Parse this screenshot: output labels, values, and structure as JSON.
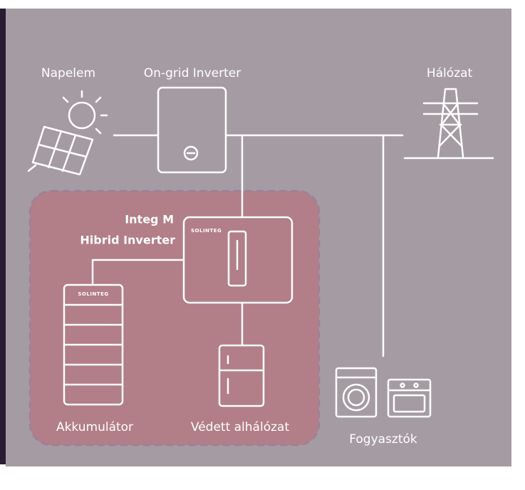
{
  "labels": {
    "solar": "Napelem",
    "ongrid": "On-grid Inverter",
    "grid": "Hálózat",
    "hybrid_title": "Integ M",
    "hybrid_subtitle": "Hibrid Inverter",
    "hybrid_logo": "SOLINTEG",
    "battery_logo": "SOLINTEG",
    "battery": "Akkumulátor",
    "protected": "Védett alhálózat",
    "consumers": "Fogyasztók"
  }
}
